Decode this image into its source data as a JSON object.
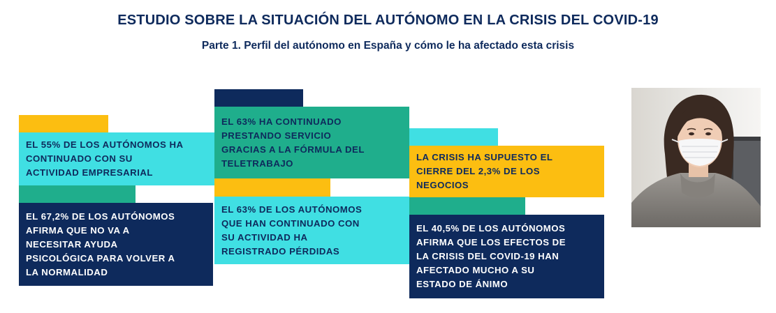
{
  "header": {
    "title": "ESTUDIO SOBRE LA SITUACIÓN DEL AUTÓNOMO EN LA CRISIS DEL COVID-19",
    "subtitle": "Parte 1. Perfil del autónomo en España y cómo le ha afectado esta crisis"
  },
  "cards": {
    "c1": "EL 55% DE LOS AUTÓNOMOS HA\nCONTINUADO CON SU\nACTIVIDAD EMPRESARIAL",
    "c2": "EL 67,2% DE LOS AUTÓNOMOS\nAFIRMA QUE NO VA A\nNECESITAR AYUDA\nPSICOLÓGICA PARA VOLVER A\nLA NORMALIDAD",
    "c3": "EL 63% HA CONTINUADO\nPRESTANDO SERVICIO\nGRACIAS A LA FÓRMULA DEL\nTELETRABAJO",
    "c4": "EL 63% DE LOS AUTÓNOMOS\nQUE HAN CONTINUADO CON\nSU ACTIVIDAD HA\nREGISTRADO PÉRDIDAS",
    "c5": "LA CRISIS HA SUPUESTO EL\nCIERRE DEL 2,3% DE LOS\nNEGOCIOS",
    "c6": "EL 40,5% DE LOS AUTÓNOMOS\nAFIRMA QUE LOS EFECTOS DE\nLA CRISIS DEL COVID-19 HAN\nAFECTADO MUCHO A SU\nESTADO DE ÁNIMO"
  },
  "colors": {
    "navy": "#0e2a5c",
    "cyan": "#40dfe3",
    "teal": "#1fae8c",
    "yellow": "#fcbe11"
  }
}
